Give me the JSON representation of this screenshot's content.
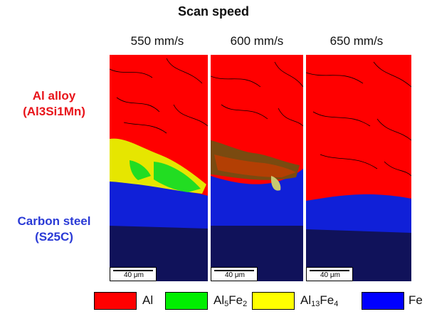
{
  "title": "Scan speed",
  "columns": [
    {
      "label": "550 mm/s",
      "scale": "40 μm"
    },
    {
      "label": "600 mm/s",
      "scale": "40 μm"
    },
    {
      "label": "650 mm/s",
      "scale": "40 μm"
    }
  ],
  "rows": {
    "top": {
      "line1": "Al alloy",
      "line2": "(Al3Si1Mn)",
      "color": "#e8141a"
    },
    "bottom": {
      "line1": "Carbon steel",
      "line2": "(S25C)",
      "color": "#2a3ad6"
    }
  },
  "legend": [
    {
      "base": "Al",
      "sub1": "",
      "mid": "",
      "sub2": "",
      "color": "#ff0000"
    },
    {
      "base": "Al",
      "sub1": "5",
      "mid": "Fe",
      "sub2": "2",
      "color": "#00ee00"
    },
    {
      "base": "Al",
      "sub1": "13",
      "mid": "Fe",
      "sub2": "4",
      "color": "#ffff00"
    },
    {
      "base": "Fe",
      "sub1": "",
      "mid": "",
      "sub2": "",
      "color": "#0000ff"
    }
  ]
}
